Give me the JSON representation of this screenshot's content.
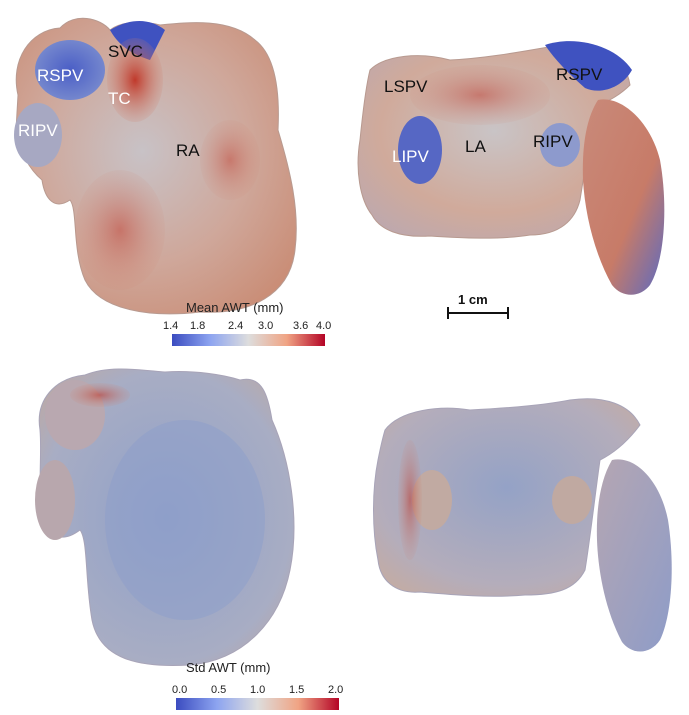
{
  "top_labels": {
    "rspv_left": "RSPV",
    "svc": "SVC",
    "tc": "TC",
    "ripv_left": "RIPV",
    "ra": "RA",
    "lspv": "LSPV",
    "rspv_right": "RSPV",
    "lipv": "LIPV",
    "la": "LA",
    "ripv_right": "RIPV"
  },
  "colorbar_mean": {
    "title": "Mean AWT (mm)",
    "ticks": [
      "1.4",
      "1.8",
      "2.4",
      "3.0",
      "3.6",
      "4.0"
    ]
  },
  "colorbar_std": {
    "title": "Std AWT (mm)",
    "ticks": [
      "0.0",
      "0.5",
      "1.0",
      "1.5",
      "2.0"
    ]
  },
  "scale_bar": {
    "label": "1 cm"
  },
  "colors": {
    "low": "#3b4cc0",
    "mid": "#dddddd",
    "high": "#b40426",
    "surface": "#c9b3ab"
  }
}
